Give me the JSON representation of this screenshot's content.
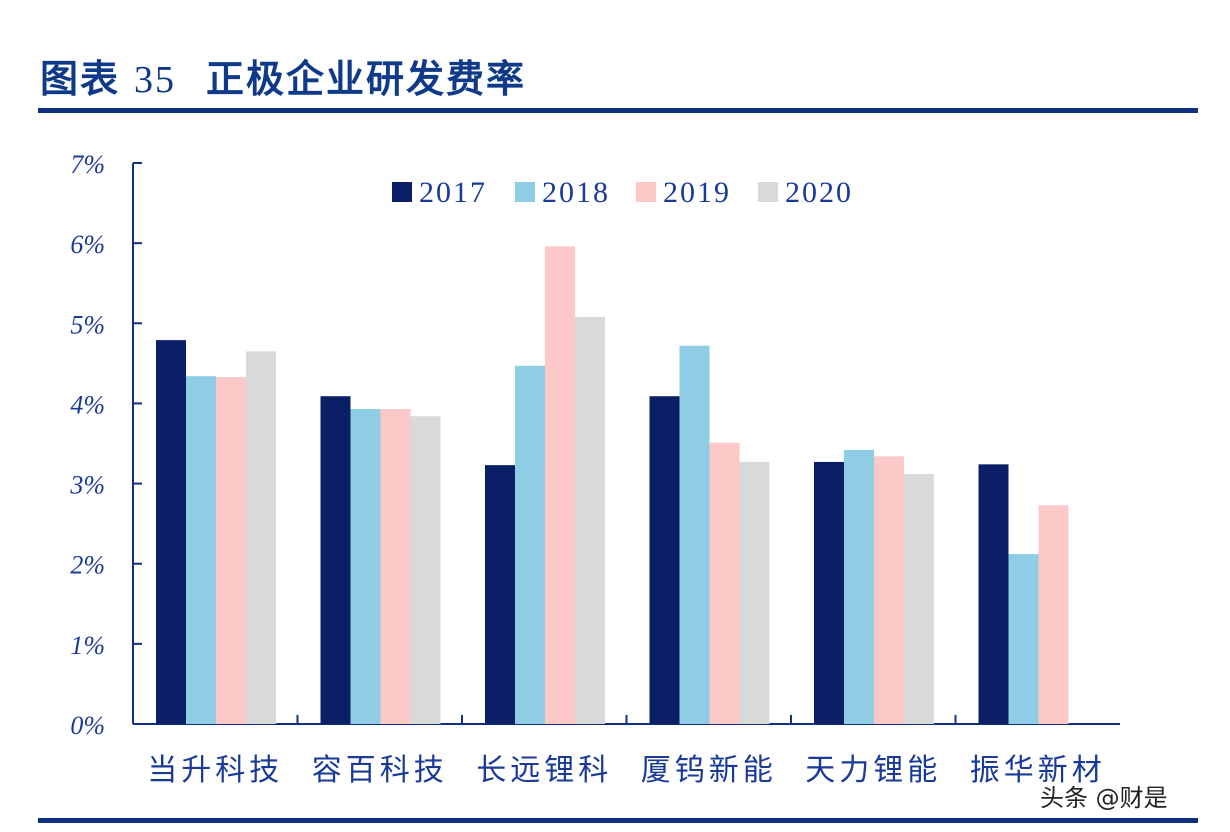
{
  "header": {
    "label": "图表",
    "number": "35",
    "title": "正极企业研发费率"
  },
  "watermark": "头条 @财是",
  "chart_data": {
    "type": "bar",
    "title": "正极企业研发费率",
    "categories": [
      "当升科技",
      "容百科技",
      "长远锂科",
      "厦钨新能",
      "天力锂能",
      "振华新材"
    ],
    "series": [
      {
        "name": "2017",
        "color": "#0a1f66",
        "values": [
          4.79,
          4.09,
          3.23,
          4.09,
          3.27,
          3.24
        ]
      },
      {
        "name": "2018",
        "color": "#8ecde3",
        "values": [
          4.34,
          3.93,
          4.47,
          4.72,
          3.42,
          2.12
        ]
      },
      {
        "name": "2019",
        "color": "#fcc8c8",
        "values": [
          4.33,
          3.93,
          5.96,
          3.51,
          3.34,
          2.73
        ]
      },
      {
        "name": "2020",
        "color": "#d9d9d9",
        "values": [
          4.65,
          3.84,
          5.08,
          3.27,
          3.12,
          null
        ]
      }
    ],
    "ylim": [
      0,
      7
    ],
    "yticks": [
      "0%",
      "1%",
      "2%",
      "3%",
      "4%",
      "5%",
      "6%",
      "7%"
    ],
    "unit": "%",
    "legend": "top-center",
    "grid": false
  }
}
